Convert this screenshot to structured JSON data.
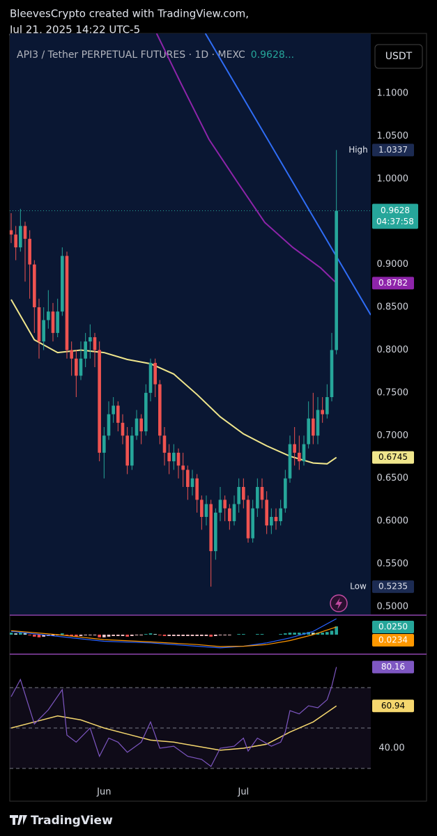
{
  "header": {
    "line1": "BleevesCrypto created with TradingView.com,",
    "line2": "Jul 21, 2025 14:22 UTC-5"
  },
  "currency": "USDT",
  "footer": {
    "brand": "TradingView"
  },
  "chart_data": [
    {
      "type": "candlestick",
      "title": "API3 / Tether PERPETUAL FUTURES · 1D · MEXC",
      "title_price": "0.9628...",
      "countdown": "04:37:58",
      "up_color": "#26a69a",
      "down_color": "#ef5350",
      "open": [
        0.94,
        0.935,
        0.92,
        0.945,
        0.93,
        0.9,
        0.85,
        0.81,
        0.835,
        0.845,
        0.82,
        0.845,
        0.91,
        0.8,
        0.79,
        0.77,
        0.79,
        0.81,
        0.815,
        0.8,
        0.68,
        0.7,
        0.725,
        0.735,
        0.715,
        0.7,
        0.665,
        0.7,
        0.72,
        0.705,
        0.75,
        0.785,
        0.76,
        0.7,
        0.68,
        0.67,
        0.68,
        0.665,
        0.66,
        0.64,
        0.65,
        0.625,
        0.605,
        0.62,
        0.565,
        0.61,
        0.625,
        0.615,
        0.6,
        0.62,
        0.64,
        0.625,
        0.58,
        0.615,
        0.64,
        0.625,
        0.595,
        0.605,
        0.6,
        0.615,
        0.65,
        0.69,
        0.68,
        0.67,
        0.69,
        0.72,
        0.7,
        0.73,
        0.725,
        0.745,
        0.8
      ],
      "high": [
        0.96,
        0.945,
        0.965,
        0.95,
        0.94,
        0.905,
        0.86,
        0.85,
        0.87,
        0.855,
        0.86,
        0.92,
        0.915,
        0.81,
        0.8,
        0.81,
        0.82,
        0.83,
        0.82,
        0.81,
        0.71,
        0.74,
        0.745,
        0.74,
        0.725,
        0.71,
        0.71,
        0.73,
        0.725,
        0.76,
        0.79,
        0.79,
        0.765,
        0.71,
        0.69,
        0.69,
        0.685,
        0.68,
        0.665,
        0.66,
        0.655,
        0.63,
        0.63,
        0.625,
        0.615,
        0.64,
        0.63,
        0.62,
        0.63,
        0.65,
        0.65,
        0.63,
        0.625,
        0.65,
        0.65,
        0.635,
        0.615,
        0.615,
        0.625,
        0.66,
        0.7,
        0.71,
        0.7,
        0.7,
        0.74,
        0.75,
        0.745,
        0.745,
        0.76,
        0.82,
        1.0337
      ],
      "low": [
        0.925,
        0.905,
        0.915,
        0.88,
        0.86,
        0.82,
        0.79,
        0.8,
        0.825,
        0.81,
        0.815,
        0.84,
        0.79,
        0.77,
        0.745,
        0.765,
        0.78,
        0.79,
        0.78,
        0.67,
        0.65,
        0.695,
        0.715,
        0.705,
        0.69,
        0.655,
        0.66,
        0.695,
        0.69,
        0.7,
        0.74,
        0.745,
        0.69,
        0.665,
        0.655,
        0.66,
        0.65,
        0.64,
        0.625,
        0.63,
        0.61,
        0.59,
        0.595,
        0.5235,
        0.555,
        0.6,
        0.6,
        0.59,
        0.595,
        0.61,
        0.615,
        0.575,
        0.575,
        0.605,
        0.615,
        0.585,
        0.585,
        0.59,
        0.595,
        0.61,
        0.645,
        0.665,
        0.66,
        0.665,
        0.685,
        0.69,
        0.69,
        0.715,
        0.72,
        0.74,
        0.795
      ],
      "close": [
        0.935,
        0.92,
        0.945,
        0.93,
        0.9,
        0.85,
        0.81,
        0.835,
        0.845,
        0.82,
        0.845,
        0.91,
        0.8,
        0.79,
        0.77,
        0.79,
        0.81,
        0.815,
        0.8,
        0.68,
        0.7,
        0.725,
        0.735,
        0.715,
        0.7,
        0.665,
        0.7,
        0.72,
        0.705,
        0.75,
        0.785,
        0.76,
        0.7,
        0.68,
        0.67,
        0.68,
        0.665,
        0.66,
        0.64,
        0.65,
        0.625,
        0.605,
        0.62,
        0.565,
        0.61,
        0.625,
        0.615,
        0.6,
        0.62,
        0.64,
        0.625,
        0.58,
        0.615,
        0.64,
        0.625,
        0.595,
        0.605,
        0.6,
        0.615,
        0.65,
        0.69,
        0.68,
        0.67,
        0.69,
        0.72,
        0.7,
        0.73,
        0.725,
        0.745,
        0.8,
        0.9628
      ],
      "lines": [
        {
          "color": "#f0e68c",
          "x": [
            0,
            5,
            10,
            15,
            20,
            25,
            30,
            35,
            40,
            45,
            50,
            55,
            60,
            65,
            68,
            70
          ],
          "values": [
            0.859,
            0.812,
            0.797,
            0.8,
            0.797,
            0.789,
            0.784,
            0.772,
            0.748,
            0.722,
            0.702,
            0.688,
            0.676,
            0.668,
            0.667,
            0.6745
          ]
        },
        {
          "color": "#8e24aa",
          "x": [
            31.3,
            36.6,
            42.6,
            48.6,
            54.6,
            60.6,
            66.6,
            70
          ],
          "values": [
            1.17,
            1.111,
            1.046,
            0.997,
            0.949,
            0.92,
            0.896,
            0.8782
          ]
        },
        {
          "color": "#2f6df6",
          "x": [
            41.8,
            77.4
          ],
          "values": [
            1.17,
            0.841
          ]
        }
      ],
      "high_marker": {
        "label": "High",
        "value": 1.0337
      },
      "low_marker": {
        "label": "Low",
        "value": 0.5235
      },
      "xlim": [
        -0.3,
        77.4
      ],
      "xticks": [
        {
          "value": 20,
          "label": "Jun"
        },
        {
          "value": 50,
          "label": "Jul"
        }
      ],
      "ylim": [
        0.491,
        1.17
      ],
      "yticks": [
        {
          "value": 0.5,
          "label": "0.5000"
        },
        {
          "value": 0.55,
          "label": "0.5500"
        },
        {
          "value": 0.6,
          "label": "0.6000"
        },
        {
          "value": 0.65,
          "label": "0.6500"
        },
        {
          "value": 0.7,
          "label": "0.7000"
        },
        {
          "value": 0.75,
          "label": "0.7500"
        },
        {
          "value": 0.8,
          "label": "0.8000"
        },
        {
          "value": 0.85,
          "label": "0.8500"
        },
        {
          "value": 0.9,
          "label": "0.9000"
        },
        {
          "value": 0.95,
          "label": "0.9500"
        },
        {
          "value": 1.0,
          "label": "1.0000"
        },
        {
          "value": 1.05,
          "label": "1.0500"
        },
        {
          "value": 1.1,
          "label": "1.1000"
        }
      ]
    },
    {
      "type": "macd",
      "histogram": [
        0.006,
        0.004,
        0.006,
        0.004,
        -0.002,
        -0.006,
        -0.008,
        -0.006,
        -0.004,
        -0.004,
        -0.002,
        0.004,
        -0.002,
        -0.004,
        -0.006,
        -0.004,
        -0.002,
        -0.002,
        -0.002,
        -0.008,
        -0.008,
        -0.006,
        -0.004,
        -0.004,
        -0.004,
        -0.006,
        -0.004,
        -0.002,
        -0.002,
        0.002,
        0.004,
        0.002,
        -0.002,
        -0.004,
        -0.004,
        -0.004,
        -0.004,
        -0.004,
        -0.004,
        -0.004,
        -0.004,
        -0.004,
        -0.004,
        -0.006,
        -0.004,
        -0.002,
        -0.002,
        -0.002,
        0,
        0.002,
        0.002,
        0,
        0,
        0.002,
        0.002,
        0,
        0,
        0,
        0.002,
        0.004,
        0.006,
        0.006,
        0.006,
        0.006,
        0.008,
        0.006,
        0.006,
        0.006,
        0.008,
        0.012,
        0.025
      ],
      "histogram_last_label": "0.0250",
      "histogram_colors": [
        "#26a69a",
        "#b2dfdb",
        "#ffcdd2",
        "#ff5252"
      ],
      "lines": [
        {
          "color": "#2962ff",
          "x": [
            0,
            10,
            20,
            30,
            40,
            45,
            50,
            55,
            60,
            65,
            70
          ],
          "values": [
            0.01,
            -0.005,
            -0.02,
            -0.025,
            -0.035,
            -0.04,
            -0.035,
            -0.025,
            -0.01,
            0.01,
            0.0484
          ]
        },
        {
          "color": "#ff9800",
          "x": [
            0,
            10,
            20,
            30,
            40,
            45,
            50,
            55,
            60,
            65,
            70
          ],
          "values": [
            0.012,
            0.0,
            -0.015,
            -0.022,
            -0.03,
            -0.036,
            -0.035,
            -0.03,
            -0.018,
            0.0,
            0.0234
          ]
        }
      ],
      "ylim": [
        -0.057,
        0.057
      ]
    },
    {
      "type": "rsi",
      "color": "#7e57c2",
      "x": [
        0,
        2,
        5,
        8,
        11,
        12,
        14,
        17,
        19,
        21,
        23,
        25,
        28,
        30,
        32,
        35,
        38,
        41,
        43,
        45,
        48,
        50,
        51,
        53,
        56,
        58,
        59,
        60,
        62,
        64,
        66,
        68,
        69,
        70
      ],
      "values": [
        65.5,
        74,
        52,
        59,
        69,
        46.5,
        43,
        50,
        36,
        45,
        43,
        38,
        43,
        53,
        40,
        41,
        36,
        34.5,
        31,
        40,
        41,
        45,
        38.6,
        45,
        41,
        43,
        48,
        58.6,
        57,
        61,
        60,
        64,
        70.7,
        80.16
      ],
      "ma": {
        "color": "#f5d76e",
        "x": [
          0,
          5,
          10,
          15,
          20,
          25,
          30,
          35,
          40,
          45,
          50,
          55,
          60,
          65,
          70
        ],
        "values": [
          50,
          53,
          56,
          54,
          50,
          47,
          44,
          43,
          41,
          39,
          40,
          42,
          48,
          53,
          60.94
        ]
      },
      "bands": [
        70,
        50,
        30
      ],
      "ylim": [
        20.7,
        86.2
      ],
      "yticks": [
        {
          "value": 40,
          "label": "40.00"
        }
      ]
    }
  ]
}
